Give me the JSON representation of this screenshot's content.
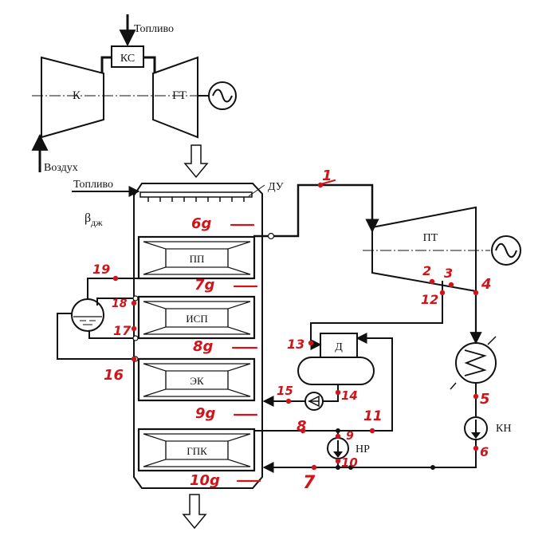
{
  "gas_turbine": {
    "fuel_label": "Топливо",
    "air_label": "Воздух",
    "compressor_label": "К",
    "combustor_label": "КС",
    "turbine_label": "ГТ"
  },
  "boiler": {
    "fuel_label": "Топливо",
    "burner_label": "ДУ",
    "beta_label": "β",
    "beta_subscript": "дж",
    "sections": [
      {
        "id": "pp",
        "label": "ПП"
      },
      {
        "id": "isp",
        "label": "ИСП"
      },
      {
        "id": "ek",
        "label": "ЭК"
      },
      {
        "id": "gpk",
        "label": "ГПК"
      }
    ]
  },
  "steam_turbine": {
    "label": "ПТ"
  },
  "deaerator": {
    "label": "Д"
  },
  "pumps": {
    "condensate_pump": "КН",
    "recirculation_pump": "НР"
  },
  "point_labels": {
    "p1": "1",
    "p2": "2",
    "p3": "3",
    "p4": "4",
    "p5": "5",
    "p6": "6",
    "p7": "7",
    "p8": "8",
    "p9": "9",
    "p10": "10",
    "p11": "11",
    "p12": "12",
    "p13": "13",
    "p14": "14",
    "p15": "15",
    "p16": "16",
    "p17": "17",
    "p18": "18",
    "p19": "19",
    "g6": "6g",
    "g7": "7g",
    "g8": "8g",
    "g9": "9g",
    "g10": "10g"
  },
  "colors": {
    "line": "#111111",
    "annotation": "#d0141a",
    "background": "#ffffff"
  }
}
